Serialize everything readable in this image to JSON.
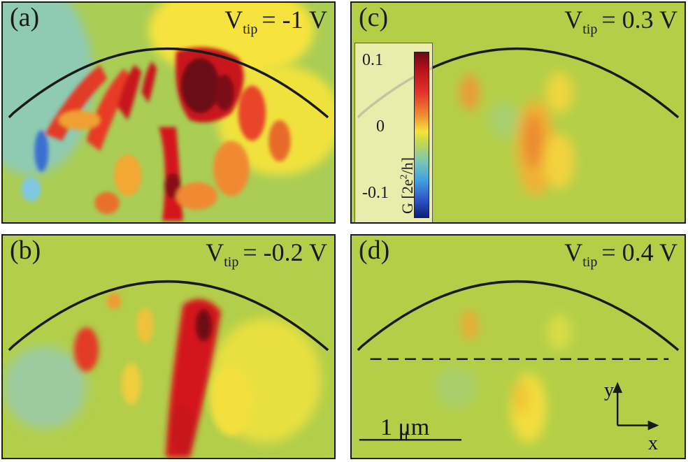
{
  "panels": [
    {
      "id": "a",
      "label": "(a)",
      "vtip_value": "= -1 V"
    },
    {
      "id": "b",
      "label": "(b)",
      "vtip_value": "= -0.2 V"
    },
    {
      "id": "c",
      "label": "(c)",
      "vtip_value": "= 0.3 V"
    },
    {
      "id": "d",
      "label": "(d)",
      "vtip_value": "= 0.4 V"
    }
  ],
  "vtip": {
    "symbol": "V",
    "subscript": "tip"
  },
  "colorbar": {
    "ticks": [
      "0.1",
      "0",
      "-0.1"
    ],
    "unit_label": "G [2e",
    "unit_sup": "2",
    "unit_tail": "/h]"
  },
  "scalebar": {
    "label": "1 μm"
  },
  "axes": {
    "x": "x",
    "y": "y"
  },
  "colors": {
    "background": "#b4cf47",
    "red": "#d4141b",
    "dark_red": "#5a0a10",
    "blue": "#3f9fe0",
    "yellow": "#f3e63a"
  }
}
